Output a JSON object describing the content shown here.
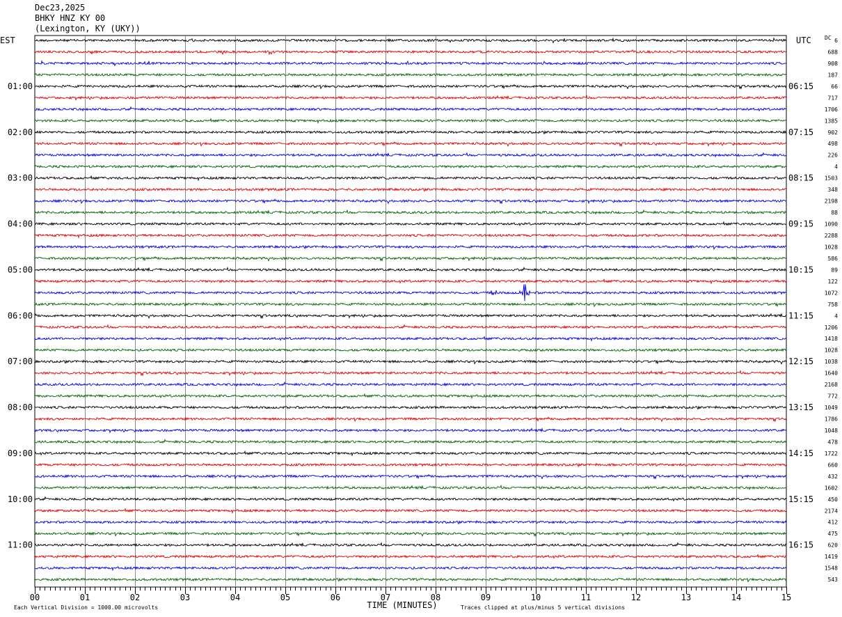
{
  "header": {
    "date": "Dec23,2025",
    "station": "BHKY HNZ KY 00",
    "location": "(Lexington, KY (UKY))"
  },
  "chart_data": {
    "type": "line",
    "title": "BHKY HNZ KY 00",
    "xlabel": "TIME (MINUTES)",
    "left_axis_label": "EST",
    "right_axis_label": "UTC",
    "dc_label": "DC",
    "xlim": [
      0,
      15
    ],
    "x_ticks": [
      "00",
      "01",
      "02",
      "03",
      "04",
      "05",
      "06",
      "07",
      "08",
      "09",
      "10",
      "11",
      "12",
      "13",
      "14",
      "15"
    ],
    "trace_colors": [
      "#000000",
      "#e00000",
      "#0000e0",
      "#006400"
    ],
    "rows_per_hour": 4,
    "left_hour_labels": [
      "01:00",
      "02:00",
      "03:00",
      "04:00",
      "05:00",
      "06:00",
      "07:00",
      "08:00",
      "09:00",
      "10:00",
      "11:00"
    ],
    "right_hour_labels": [
      "06:15",
      "07:15",
      "08:15",
      "09:15",
      "10:15",
      "11:15",
      "12:15",
      "13:15",
      "14:15",
      "15:15",
      "16:15"
    ],
    "dc_offsets": [
      "6",
      "688",
      "908",
      "187",
      "66",
      "717",
      "1706",
      "1385",
      "902",
      "498",
      "226",
      "4",
      "1503",
      "348",
      "2198",
      "88",
      "1090",
      "2288",
      "1028",
      "586",
      "89",
      "122",
      "1072",
      "758",
      "4",
      "1206",
      "1418",
      "1028",
      "1038",
      "1640",
      "2168",
      "772",
      "1049",
      "1786",
      "1048",
      "478",
      "1722",
      "660",
      "432",
      "1602",
      "450",
      "2174",
      "412",
      "475",
      "620",
      "1419",
      "1548",
      "543"
    ],
    "events": [
      {
        "row": 22,
        "minute": 9.78,
        "description": "spike"
      },
      {
        "row": 22,
        "minute": 9.15,
        "description": "small burst"
      }
    ],
    "footer_left": "Each Vertical Division = 1000.00 microvolts",
    "footer_right": "Traces clipped at plus/minus 5 vertical divisions"
  }
}
